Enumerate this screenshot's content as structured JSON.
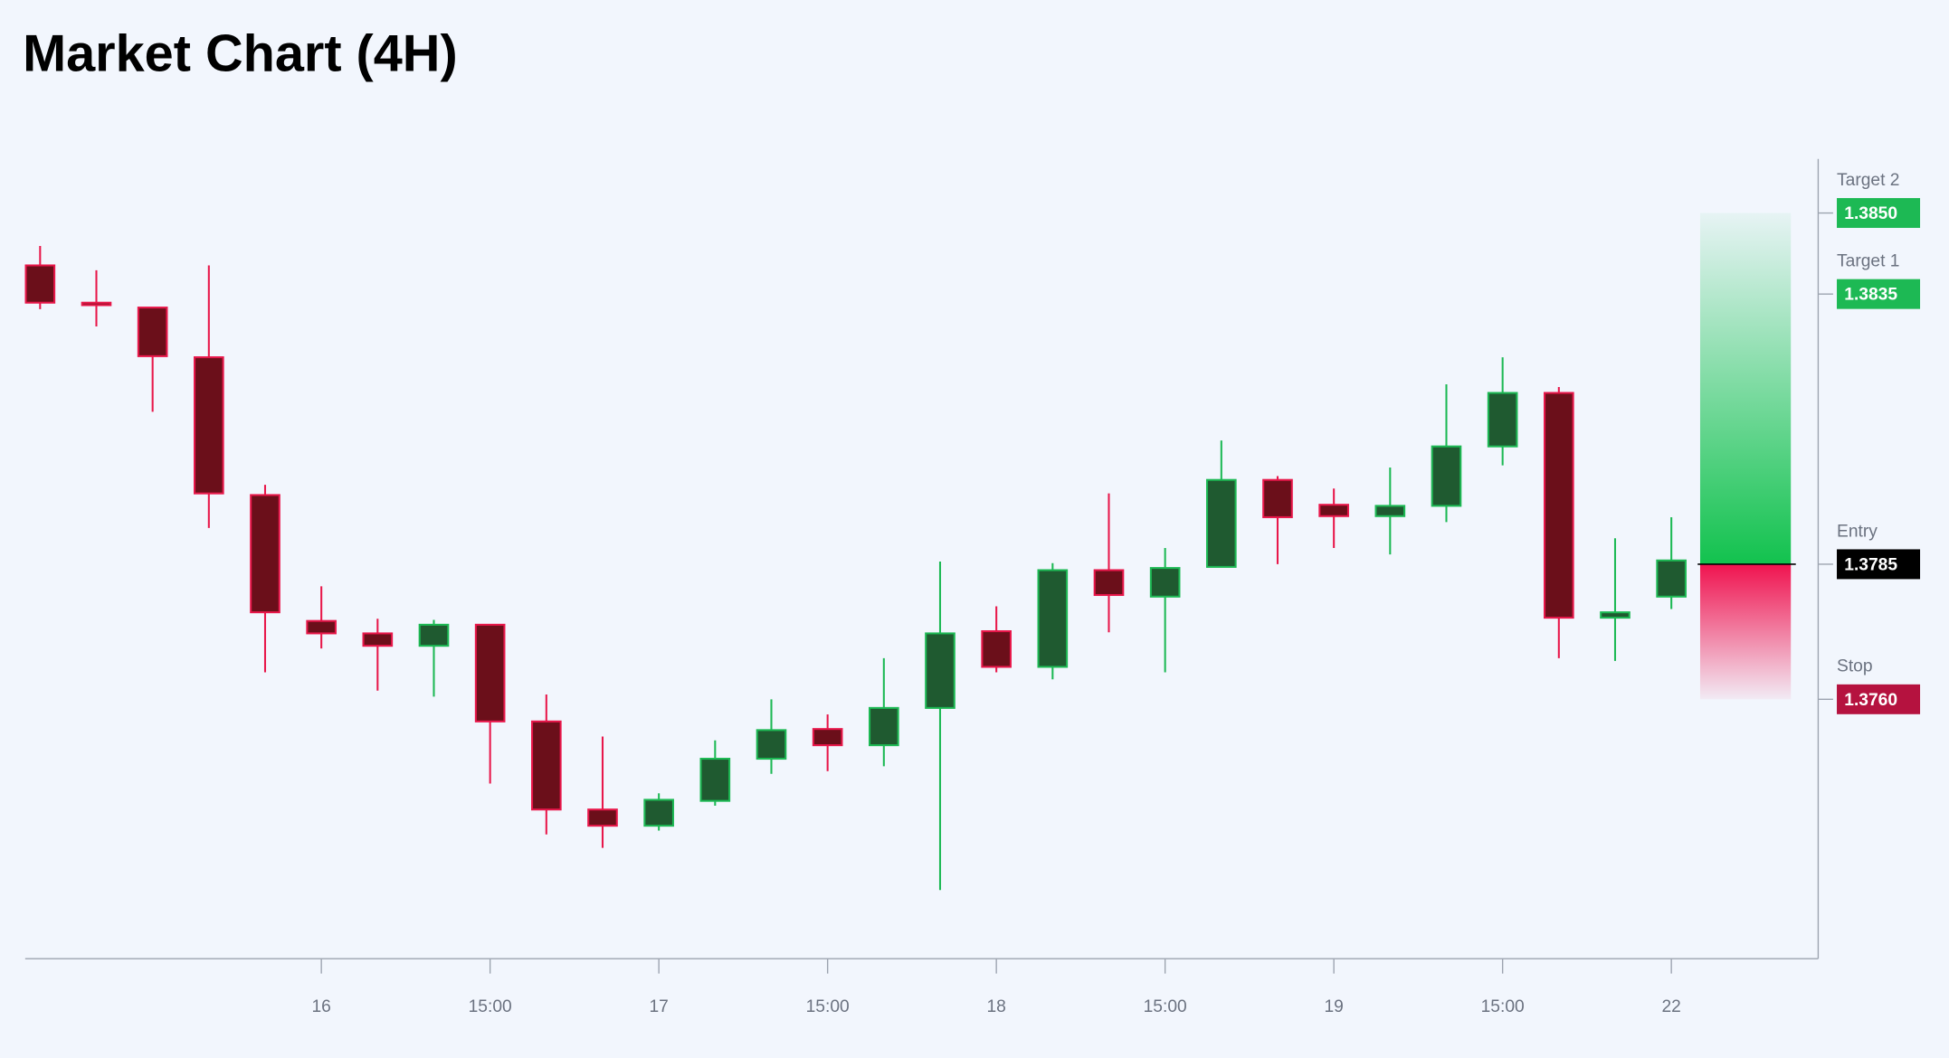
{
  "chart_data": {
    "type": "candlestick",
    "title": "Market Chart (4H)",
    "categories": [
      null,
      null,
      null,
      null,
      null,
      "16",
      null,
      null,
      "15:00",
      null,
      null,
      "17",
      null,
      null,
      "15:00",
      null,
      null,
      "18",
      null,
      null,
      "15:00",
      null,
      null,
      "19",
      null,
      null,
      "15:00",
      null,
      null,
      "22"
    ],
    "open": [
      1.38403,
      1.38334,
      1.38325,
      1.38233,
      1.37978,
      1.37745,
      1.37722,
      1.37699,
      1.37738,
      1.37559,
      1.37396,
      1.37366,
      1.37412,
      1.3749,
      1.37545,
      1.37515,
      1.37584,
      1.37726,
      1.3766,
      1.37839,
      1.3779,
      1.37845,
      1.38006,
      1.3796,
      1.37939,
      1.37958,
      1.38068,
      1.38167,
      1.37751,
      1.3779
    ],
    "high": [
      1.38439,
      1.38394,
      1.38325,
      1.38403,
      1.37997,
      1.37809,
      1.37749,
      1.37747,
      1.37738,
      1.37609,
      1.37531,
      1.37426,
      1.37524,
      1.376,
      1.37572,
      1.37676,
      1.37855,
      1.37772,
      1.37852,
      1.37981,
      1.3788,
      1.38079,
      1.38013,
      1.3799,
      1.38029,
      1.38183,
      1.38233,
      1.38178,
      1.37898,
      1.37937
    ],
    "low": [
      1.38322,
      1.3829,
      1.38132,
      1.37917,
      1.3765,
      1.37694,
      1.37616,
      1.37605,
      1.37444,
      1.3735,
      1.37325,
      1.37357,
      1.37403,
      1.37462,
      1.37467,
      1.37476,
      1.37247,
      1.3765,
      1.37637,
      1.37724,
      1.3765,
      1.37845,
      1.3785,
      1.3788,
      1.37868,
      1.37928,
      1.38033,
      1.37676,
      1.37671,
      1.37767
    ],
    "close": [
      1.38334,
      1.3833,
      1.38235,
      1.37981,
      1.37761,
      1.37722,
      1.37699,
      1.37738,
      1.37559,
      1.37396,
      1.37366,
      1.37414,
      1.3749,
      1.37543,
      1.37515,
      1.37584,
      1.37722,
      1.3766,
      1.37839,
      1.37793,
      1.37843,
      1.38006,
      1.37937,
      1.37939,
      1.37958,
      1.38068,
      1.38167,
      1.37751,
      1.37761,
      1.37857
    ],
    "up_color": "#1db954",
    "down_color": "#e8174a",
    "ylim": [
      1.3712,
      1.386
    ],
    "levels": [
      {
        "name": "Target 2",
        "value": 1.385,
        "value_label": "1.3850",
        "color": "#1db954"
      },
      {
        "name": "Target 1",
        "value": 1.3835,
        "value_label": "1.3835",
        "color": "#1db954"
      },
      {
        "name": "Entry",
        "value": 1.3785,
        "value_label": "1.3785",
        "color": "#000000"
      },
      {
        "name": "Stop",
        "value": 1.376,
        "value_label": "1.3760",
        "color": "#b5123f"
      }
    ]
  }
}
